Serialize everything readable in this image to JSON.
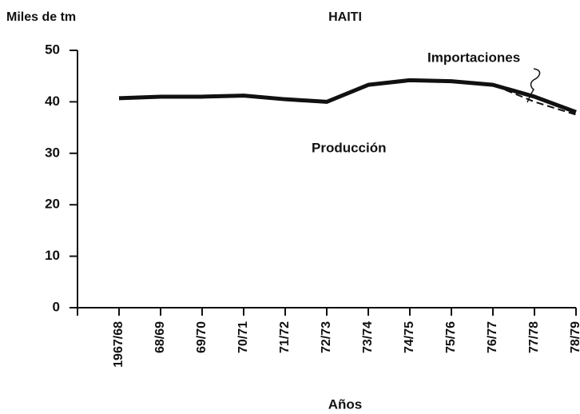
{
  "chart_data": {
    "type": "line",
    "title": "HAITI",
    "y_label": "Miles de tm",
    "x_label": "Años",
    "categories": [
      "1967/68",
      "68/69",
      "69/70",
      "70/71",
      "71/72",
      "72/73",
      "73/74",
      "74/75",
      "75/76",
      "76/77",
      "77/78",
      "78/79"
    ],
    "series": [
      {
        "name": "Producción",
        "color": "#111111",
        "style": "solid",
        "values": [
          40.7,
          41,
          41,
          41.2,
          40.5,
          40,
          43.3,
          44.2,
          44,
          43.3,
          41,
          38
        ]
      },
      {
        "name": "Importaciones",
        "color": "#111111",
        "style": "dashed",
        "values": [
          40.7,
          41,
          41,
          41.2,
          40.5,
          40,
          43.3,
          44.2,
          44,
          43.3,
          40,
          37.5
        ]
      }
    ],
    "ylim": [
      0,
      50
    ],
    "yticks": [
      0,
      10,
      20,
      30,
      40,
      50
    ],
    "grid": false
  }
}
